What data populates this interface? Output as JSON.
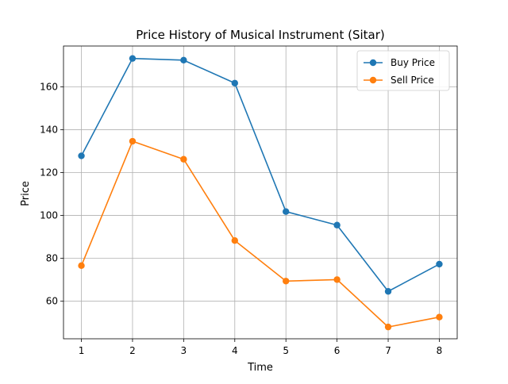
{
  "chart_data": {
    "type": "line",
    "title": "Price History of Musical Instrument (Sitar)",
    "xlabel": "Time",
    "ylabel": "Price",
    "x": [
      1,
      2,
      3,
      4,
      5,
      6,
      7,
      8
    ],
    "xlim": [
      0.65,
      8.35
    ],
    "ylim": [
      42.5,
      179
    ],
    "xticks": [
      1,
      2,
      3,
      4,
      5,
      6,
      7,
      8
    ],
    "yticks": [
      60,
      80,
      100,
      120,
      140,
      160
    ],
    "grid": true,
    "legend_position": "top-right",
    "series": [
      {
        "name": "Buy Price",
        "color": "#1f77b4",
        "marker": "circle",
        "values": [
          127.8,
          173.2,
          172.4,
          161.7,
          101.8,
          95.5,
          64.6,
          77.3
        ]
      },
      {
        "name": "Sell Price",
        "color": "#ff7f0e",
        "marker": "circle",
        "values": [
          76.6,
          134.6,
          126.2,
          88.3,
          69.4,
          70.1,
          48.0,
          52.6
        ]
      }
    ]
  }
}
